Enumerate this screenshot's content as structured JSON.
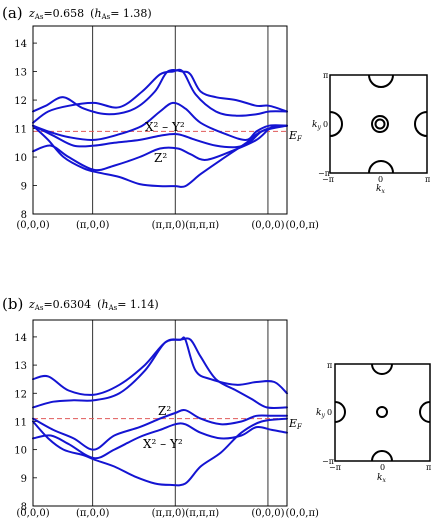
{
  "panels": [
    {
      "label": "(a)",
      "z_label": "z",
      "z_sub": "As",
      "z_value": "=0.658",
      "h_label": "h",
      "h_sub": "As",
      "h_value": "= 1.38)",
      "h_open": "(",
      "orbital_upper": "X² – Y²",
      "orbital_lower": "Z²",
      "ef_label": "E",
      "ef_sub": "F",
      "chart_data": {
        "type": "line",
        "ylim": [
          8,
          14.6
        ],
        "yticks": [
          "8",
          "9",
          "10",
          "11",
          "12",
          "13",
          "14"
        ],
        "xticks": [
          "(0,0,0)",
          "(π,0,0)",
          "(π,π,0)(π,π,π)",
          "(0,0,0)",
          "(0,0,π)"
        ],
        "ef": 10.9,
        "series": [
          {
            "values": [
              [
                0,
                11.6
              ],
              [
                0.05,
                11.8
              ],
              [
                0.12,
                12.1
              ],
              [
                0.2,
                11.7
              ],
              [
                0.3,
                11.5
              ],
              [
                0.4,
                11.7
              ],
              [
                0.48,
                12.3
              ],
              [
                0.53,
                13.0
              ],
              [
                0.59,
                13.0
              ],
              [
                0.62,
                12.9
              ],
              [
                0.66,
                12.3
              ],
              [
                0.72,
                12.1
              ],
              [
                0.8,
                12.0
              ],
              [
                0.88,
                11.8
              ],
              [
                0.93,
                11.8
              ],
              [
                1,
                11.6
              ]
            ]
          },
          {
            "values": [
              [
                0,
                11.2
              ],
              [
                0.06,
                11.6
              ],
              [
                0.14,
                11.8
              ],
              [
                0.24,
                11.9
              ],
              [
                0.34,
                11.75
              ],
              [
                0.43,
                12.3
              ],
              [
                0.5,
                12.9
              ],
              [
                0.55,
                13.0
              ],
              [
                0.59,
                13.0
              ],
              [
                0.64,
                12.2
              ],
              [
                0.72,
                11.6
              ],
              [
                0.8,
                11.45
              ],
              [
                0.88,
                11.5
              ],
              [
                0.93,
                11.6
              ],
              [
                1,
                11.6
              ]
            ]
          },
          {
            "values": [
              [
                0,
                11.1
              ],
              [
                0.06,
                10.9
              ],
              [
                0.14,
                10.7
              ],
              [
                0.24,
                10.6
              ],
              [
                0.34,
                10.8
              ],
              [
                0.43,
                11.1
              ],
              [
                0.5,
                11.6
              ],
              [
                0.55,
                11.9
              ],
              [
                0.6,
                11.7
              ],
              [
                0.66,
                11.2
              ],
              [
                0.76,
                10.8
              ],
              [
                0.84,
                10.6
              ],
              [
                0.88,
                10.9
              ],
              [
                0.93,
                11.1
              ],
              [
                1,
                11.1
              ]
            ]
          },
          {
            "values": [
              [
                0,
                11.1
              ],
              [
                0.08,
                10.75
              ],
              [
                0.16,
                10.4
              ],
              [
                0.24,
                10.4
              ],
              [
                0.32,
                10.5
              ],
              [
                0.42,
                10.6
              ],
              [
                0.5,
                10.75
              ],
              [
                0.57,
                10.8
              ],
              [
                0.64,
                10.6
              ],
              [
                0.72,
                10.4
              ],
              [
                0.8,
                10.35
              ],
              [
                0.85,
                10.5
              ],
              [
                0.9,
                10.9
              ],
              [
                0.95,
                11.05
              ],
              [
                1,
                11.1
              ]
            ]
          },
          {
            "values": [
              [
                0,
                10.2
              ],
              [
                0.07,
                10.4
              ],
              [
                0.14,
                10.0
              ],
              [
                0.24,
                9.55
              ],
              [
                0.32,
                9.7
              ],
              [
                0.42,
                10.0
              ],
              [
                0.5,
                10.3
              ],
              [
                0.57,
                10.3
              ],
              [
                0.62,
                10.1
              ],
              [
                0.68,
                9.9
              ],
              [
                0.78,
                10.2
              ],
              [
                0.88,
                10.6
              ],
              [
                0.94,
                11.05
              ],
              [
                1,
                11.1
              ]
            ]
          },
          {
            "values": [
              [
                0,
                11.1
              ],
              [
                0.06,
                10.6
              ],
              [
                0.12,
                10.0
              ],
              [
                0.2,
                9.6
              ],
              [
                0.26,
                9.45
              ],
              [
                0.34,
                9.3
              ],
              [
                0.42,
                9.05
              ],
              [
                0.5,
                8.98
              ],
              [
                0.56,
                8.98
              ],
              [
                0.6,
                8.98
              ],
              [
                0.66,
                9.4
              ],
              [
                0.74,
                9.9
              ],
              [
                0.84,
                10.5
              ],
              [
                0.9,
                10.9
              ],
              [
                1,
                11.1
              ]
            ]
          }
        ]
      }
    },
    {
      "label": "(b)",
      "z_label": "z",
      "z_sub": "As",
      "z_value": "=0.6304",
      "h_label": "h",
      "h_sub": "As",
      "h_value": "= 1.14)",
      "h_open": "(",
      "orbital_upper": "Z²",
      "orbital_lower": "X² – Y²",
      "ef_label": "E",
      "ef_sub": "F",
      "chart_data": {
        "type": "line",
        "ylim": [
          8,
          14.6
        ],
        "yticks": [
          "8",
          "9",
          "10",
          "11",
          "12",
          "13",
          "14"
        ],
        "xticks": [
          "(0,0,0)",
          "(π,0,0)",
          "(π,π,0)(π,π,π)",
          "(0,0,0)",
          "(0,0,π)"
        ],
        "ef": 11.1,
        "series": [
          {
            "values": [
              [
                0,
                12.5
              ],
              [
                0.06,
                12.6
              ],
              [
                0.14,
                12.1
              ],
              [
                0.24,
                11.95
              ],
              [
                0.34,
                12.3
              ],
              [
                0.44,
                13.0
              ],
              [
                0.52,
                13.8
              ],
              [
                0.58,
                13.9
              ],
              [
                0.6,
                13.9
              ],
              [
                0.64,
                12.8
              ],
              [
                0.7,
                12.5
              ],
              [
                0.8,
                12.3
              ],
              [
                0.88,
                12.4
              ],
              [
                0.95,
                12.4
              ],
              [
                1,
                12.0
              ]
            ]
          },
          {
            "values": [
              [
                0,
                11.5
              ],
              [
                0.08,
                11.7
              ],
              [
                0.16,
                11.75
              ],
              [
                0.24,
                11.75
              ],
              [
                0.34,
                12.0
              ],
              [
                0.44,
                12.8
              ],
              [
                0.52,
                13.8
              ],
              [
                0.58,
                13.9
              ],
              [
                0.62,
                13.9
              ],
              [
                0.66,
                13.3
              ],
              [
                0.72,
                12.5
              ],
              [
                0.8,
                12.1
              ],
              [
                0.86,
                11.8
              ],
              [
                0.92,
                11.5
              ],
              [
                1,
                11.5
              ]
            ]
          },
          {
            "values": [
              [
                0,
                11.1
              ],
              [
                0.08,
                10.7
              ],
              [
                0.16,
                10.4
              ],
              [
                0.24,
                10.0
              ],
              [
                0.32,
                10.5
              ],
              [
                0.42,
                10.8
              ],
              [
                0.5,
                11.1
              ],
              [
                0.56,
                11.3
              ],
              [
                0.6,
                11.4
              ],
              [
                0.66,
                11.1
              ],
              [
                0.74,
                10.9
              ],
              [
                0.82,
                11.0
              ],
              [
                0.88,
                11.2
              ],
              [
                0.94,
                11.2
              ],
              [
                1,
                11.2
              ]
            ]
          },
          {
            "values": [
              [
                0,
                10.4
              ],
              [
                0.07,
                10.5
              ],
              [
                0.14,
                10.2
              ],
              [
                0.24,
                9.7
              ],
              [
                0.32,
                10.0
              ],
              [
                0.42,
                10.45
              ],
              [
                0.5,
                10.7
              ],
              [
                0.56,
                10.9
              ],
              [
                0.6,
                10.9
              ],
              [
                0.66,
                10.6
              ],
              [
                0.74,
                10.4
              ],
              [
                0.82,
                10.5
              ],
              [
                0.88,
                10.8
              ],
              [
                0.94,
                10.7
              ],
              [
                1,
                10.6
              ]
            ]
          },
          {
            "values": [
              [
                0,
                11.0
              ],
              [
                0.06,
                10.4
              ],
              [
                0.12,
                10.0
              ],
              [
                0.2,
                9.8
              ],
              [
                0.24,
                9.65
              ],
              [
                0.32,
                9.4
              ],
              [
                0.4,
                9.05
              ],
              [
                0.48,
                8.8
              ],
              [
                0.54,
                8.75
              ],
              [
                0.6,
                8.8
              ],
              [
                0.66,
                9.4
              ],
              [
                0.74,
                9.9
              ],
              [
                0.82,
                10.6
              ],
              [
                0.9,
                11.0
              ],
              [
                1,
                11.1
              ]
            ]
          }
        ]
      }
    }
  ],
  "insets": [
    {
      "ky": "k",
      "ky_sub": "y",
      "kx": "k",
      "kx_sub": "x",
      "top": "π",
      "mid": "0",
      "bottom": "−π",
      "left": "−π",
      "center": "0",
      "right": "π"
    },
    {
      "ky": "k",
      "ky_sub": "y",
      "kx": "k",
      "kx_sub": "x",
      "top": "π",
      "mid": "0",
      "bottom": "−π",
      "left": "−π",
      "center": "0",
      "right": "π"
    }
  ]
}
